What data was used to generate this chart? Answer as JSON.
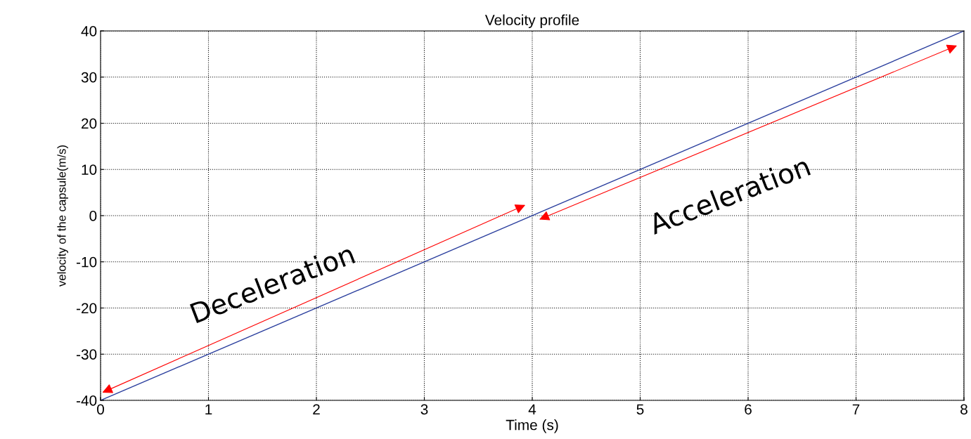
{
  "chart_data": {
    "type": "line",
    "title": "Velocity profile",
    "xlabel": "Time (s)",
    "ylabel": "velocity of the capsule(m/s)",
    "x": [
      0,
      8
    ],
    "series": [
      {
        "color": "#2b3f9e",
        "values": [
          -40,
          40
        ]
      }
    ],
    "xlim": [
      0,
      8
    ],
    "xticks": [
      0,
      1,
      2,
      3,
      4,
      5,
      6,
      7,
      8
    ],
    "ylim": [
      -40,
      40
    ],
    "yticks": [
      -40,
      -30,
      -20,
      -10,
      0,
      10,
      20,
      30,
      40
    ],
    "grid": true,
    "marker": "none",
    "line_style": "solid",
    "annotations": [
      "Deceleration",
      "Acceleration"
    ]
  }
}
